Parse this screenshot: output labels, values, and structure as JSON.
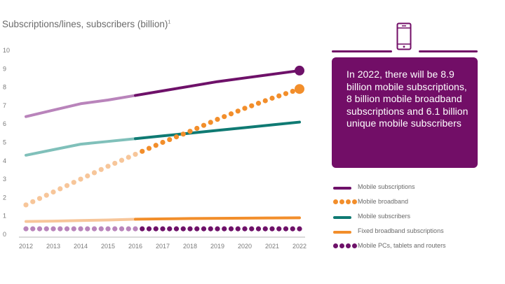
{
  "chart_data": {
    "type": "line",
    "title": "Subscriptions/lines, subscribers (billion)",
    "title_footnote": "1",
    "xlabel": "",
    "ylabel": "",
    "x": [
      2012,
      2013,
      2014,
      2015,
      2016,
      2017,
      2018,
      2019,
      2020,
      2021,
      2022
    ],
    "x_ticks": [
      "2012",
      "2013",
      "2014",
      "2015",
      "2016",
      "2017",
      "2018",
      "2019",
      "2020",
      "2021",
      "2022"
    ],
    "y_ticks": [
      "0",
      "1",
      "2",
      "3",
      "4",
      "5",
      "6",
      "7",
      "8",
      "9",
      "10"
    ],
    "ylim": [
      0,
      10
    ],
    "grid": false,
    "forecast_start": 2016,
    "legend_position": "right",
    "series": [
      {
        "name": "Mobile subscriptions",
        "style": "line",
        "color": "#6e1169",
        "color_light": "#b984bb",
        "values": [
          6.4,
          6.75,
          7.1,
          7.3,
          7.55,
          7.8,
          8.05,
          8.3,
          8.5,
          8.7,
          8.9
        ],
        "end_marker": true
      },
      {
        "name": "Mobile broadband",
        "style": "dots",
        "color": "#f28e2b",
        "color_light": "#f7c69a",
        "values": [
          1.6,
          2.3,
          3.0,
          3.7,
          4.35,
          5.0,
          5.6,
          6.25,
          6.85,
          7.4,
          7.9
        ],
        "end_marker": true
      },
      {
        "name": "Mobile subscribers",
        "style": "line",
        "color": "#0f7a73",
        "color_light": "#80c0ba",
        "values": [
          4.3,
          4.6,
          4.9,
          5.05,
          5.2,
          5.35,
          5.5,
          5.65,
          5.8,
          5.95,
          6.1
        ],
        "end_marker": false
      },
      {
        "name": "Fixed broadband subscriptions",
        "style": "line",
        "color": "#f28e2b",
        "color_light": "#f7c69a",
        "values": [
          0.7,
          0.72,
          0.75,
          0.78,
          0.82,
          0.84,
          0.86,
          0.87,
          0.88,
          0.89,
          0.9
        ],
        "end_marker": false
      },
      {
        "name": "Mobile PCs, tablets and routers",
        "style": "dots",
        "color": "#6e1169",
        "color_light": "#b984bb",
        "values": [
          0.3,
          0.3,
          0.3,
          0.3,
          0.3,
          0.3,
          0.3,
          0.3,
          0.3,
          0.3,
          0.3
        ],
        "end_marker": false
      }
    ]
  },
  "callout": {
    "icon": "smartphone-icon",
    "text": "In 2022, there will be 8.9 billion mobile subscriptions, 8 billion mobile broadband subscriptions and 6.1 billion unique mobile subscribers",
    "bg_color": "#720e67"
  },
  "legend": {
    "items": [
      {
        "label": "Mobile subscriptions",
        "swatch": "line",
        "color": "#6e1169"
      },
      {
        "label": "Mobile broadband",
        "swatch": "dots",
        "color": "#f28e2b"
      },
      {
        "label": "Mobile subscribers",
        "swatch": "line",
        "color": "#0f7a73"
      },
      {
        "label": "Fixed broadband subscriptions",
        "swatch": "line",
        "color": "#f28e2b"
      },
      {
        "label": "Mobile PCs, tablets and routers",
        "swatch": "dots",
        "color": "#6e1169"
      }
    ]
  }
}
